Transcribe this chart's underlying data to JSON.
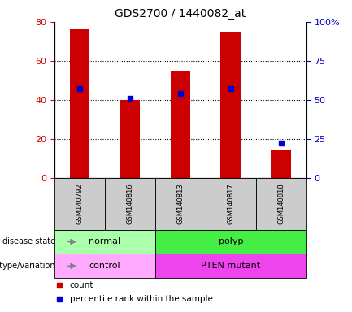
{
  "title": "GDS2700 / 1440082_at",
  "samples": [
    "GSM140792",
    "GSM140816",
    "GSM140813",
    "GSM140817",
    "GSM140818"
  ],
  "bar_values": [
    76,
    40,
    55,
    75,
    14
  ],
  "percentile_values": [
    57,
    51,
    54,
    57,
    22
  ],
  "bar_color": "#cc0000",
  "percentile_color": "#0000cc",
  "left_ylim": [
    0,
    80
  ],
  "right_ylim": [
    0,
    100
  ],
  "left_yticks": [
    0,
    20,
    40,
    60,
    80
  ],
  "right_yticks": [
    0,
    25,
    50,
    75,
    100
  ],
  "right_yticklabels": [
    "0",
    "25",
    "50",
    "75",
    "100%"
  ],
  "disease_state_groups": [
    {
      "label": "normal",
      "span": [
        0,
        2
      ],
      "color": "#aaffaa"
    },
    {
      "label": "polyp",
      "span": [
        2,
        5
      ],
      "color": "#44ee44"
    }
  ],
  "genotype_groups": [
    {
      "label": "control",
      "span": [
        0,
        2
      ],
      "color": "#ffaaff"
    },
    {
      "label": "PTEN mutant",
      "span": [
        2,
        5
      ],
      "color": "#ee44ee"
    }
  ],
  "disease_state_label": "disease state",
  "genotype_label": "genotype/variation",
  "legend_count_label": "count",
  "legend_percentile_label": "percentile rank within the sample",
  "axis_label_color_left": "#cc0000",
  "axis_label_color_right": "#0000cc",
  "background_color": "#ffffff",
  "sample_box_color": "#cccccc",
  "grid_dotted_ticks": [
    20,
    40,
    60
  ]
}
